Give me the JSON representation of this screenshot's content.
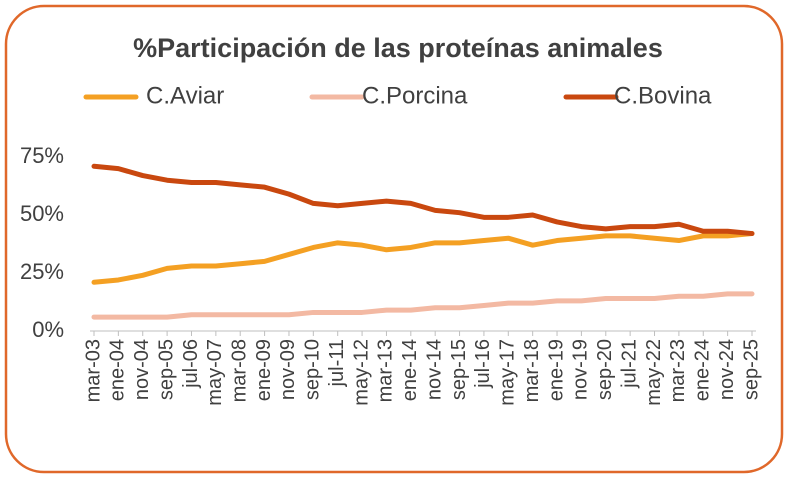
{
  "chart_data": {
    "type": "line",
    "title": "%Participación de las proteínas animales",
    "categories": [
      "mar-03",
      "ene-04",
      "nov-04",
      "sep-05",
      "jul-06",
      "may-07",
      "mar-08",
      "ene-09",
      "nov-09",
      "sep-10",
      "jul-11",
      "may-12",
      "mar-13",
      "ene-14",
      "nov-14",
      "sep-15",
      "jul-16",
      "may-17",
      "mar-18",
      "ene-19",
      "nov-19",
      "sep-20",
      "jul-21",
      "may-22",
      "mar-23",
      "ene-24",
      "nov-24",
      "sep-25"
    ],
    "series": [
      {
        "name": "C.Aviar",
        "color": "#f4a023",
        "values": [
          21,
          22,
          24,
          27,
          28,
          28,
          29,
          30,
          33,
          36,
          38,
          37,
          35,
          36,
          38,
          38,
          39,
          40,
          37,
          39,
          40,
          41,
          41,
          40,
          39,
          41,
          41,
          42
        ]
      },
      {
        "name": "C.Porcina",
        "color": "#f3b9a3",
        "values": [
          6,
          6,
          6,
          6,
          7,
          7,
          7,
          7,
          7,
          8,
          8,
          8,
          9,
          9,
          10,
          10,
          11,
          12,
          12,
          13,
          13,
          14,
          14,
          14,
          15,
          15,
          16,
          16
        ]
      },
      {
        "name": "C.Bovina",
        "color": "#c9480f",
        "values": [
          71,
          70,
          67,
          65,
          64,
          64,
          63,
          62,
          59,
          55,
          54,
          55,
          56,
          55,
          52,
          51,
          49,
          49,
          50,
          47,
          45,
          44,
          45,
          45,
          46,
          43,
          43,
          42
        ]
      }
    ],
    "ylim": [
      0,
      75
    ],
    "yticks": [
      {
        "value": 0,
        "label": "0%"
      },
      {
        "value": 25,
        "label": "25%"
      },
      {
        "value": 50,
        "label": "50%"
      },
      {
        "value": 75,
        "label": "75%"
      }
    ],
    "grid": false
  }
}
